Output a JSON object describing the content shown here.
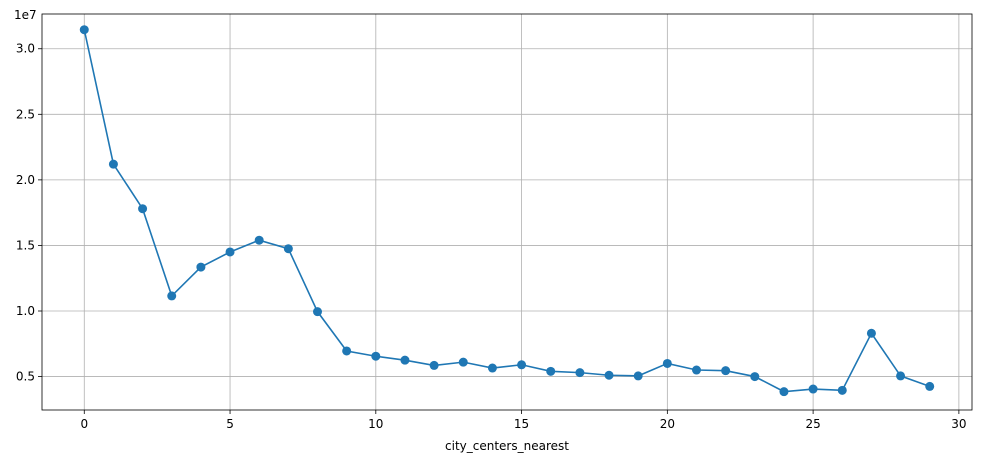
{
  "chart_data": {
    "type": "line",
    "title": "",
    "xlabel": "city_centers_nearest",
    "ylabel": "",
    "y_offset_label": "1e7",
    "xlim": [
      -1.45,
      30.45
    ],
    "ylim": [
      2450000,
      32650000
    ],
    "x_ticks": [
      0,
      5,
      10,
      15,
      20,
      25,
      30
    ],
    "x_tick_labels": [
      "0",
      "5",
      "10",
      "15",
      "20",
      "25",
      "30"
    ],
    "y_ticks": [
      5000000,
      10000000,
      15000000,
      20000000,
      25000000,
      30000000
    ],
    "y_tick_labels": [
      "0.5",
      "1.0",
      "1.5",
      "2.0",
      "2.5",
      "3.0"
    ],
    "grid": true,
    "line_color": "#1f77b4",
    "marker": "circle",
    "series": [
      {
        "x": [
          0,
          1,
          2,
          3,
          4,
          5,
          6,
          7,
          8,
          9,
          10,
          11,
          12,
          13,
          14,
          15,
          16,
          17,
          18,
          19,
          20,
          21,
          22,
          23,
          24,
          25,
          26,
          27,
          28,
          29
        ],
        "values": [
          31450000,
          21200000,
          17800000,
          11150000,
          13350000,
          14500000,
          15400000,
          14750000,
          9950000,
          6950000,
          6550000,
          6250000,
          5850000,
          6100000,
          5650000,
          5900000,
          5400000,
          5300000,
          5100000,
          5050000,
          6000000,
          5500000,
          5450000,
          5000000,
          3850000,
          4050000,
          3950000,
          8300000,
          5050000,
          4250000
        ]
      }
    ]
  }
}
